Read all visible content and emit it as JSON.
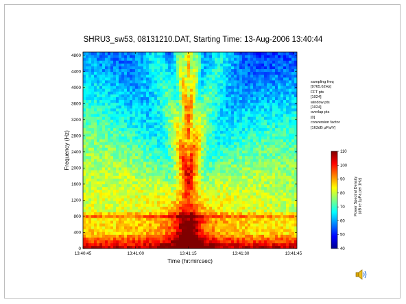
{
  "chart_data": {
    "type": "heatmap",
    "title": "SHRU3_sw53, 08131210.DAT, Starting Time: 13-Aug-2006 13:40:44",
    "xlabel": "Time (hr:min:sec)",
    "ylabel": "Frequency (Hz)",
    "x_ticks": [
      "13:40:45",
      "13:41:00",
      "13:41:15",
      "13:41:30",
      "13:41:45"
    ],
    "x_tick_seconds": [
      45,
      60,
      75,
      90,
      105
    ],
    "xlim_seconds": [
      45,
      106
    ],
    "y_ticks": [
      0,
      400,
      800,
      1200,
      1600,
      2000,
      2400,
      2800,
      3200,
      3600,
      4000,
      4400,
      4800
    ],
    "ylim": [
      0,
      4880
    ],
    "colorbar": {
      "label": "Power Spectral Density (dB re 1μPa per 1Hz)",
      "range": [
        40,
        110
      ],
      "ticks": [
        40,
        50,
        60,
        70,
        80,
        90,
        100,
        110
      ]
    },
    "features": {
      "broadband_peak_time_seconds": 75,
      "horizontal_line_hz": 800,
      "strong_low_band_hz": [
        0,
        400
      ]
    }
  },
  "annotation": [
    "sampling freq",
    "[9765.62Hz]",
    "FFT pts",
    "[1024]",
    "window pts",
    "[1024]",
    "overlap pts",
    "[0]",
    "conversion factor",
    "[163dB μPa/V]"
  ],
  "colors": {
    "jet": [
      "#00008f",
      "#0000ff",
      "#0080ff",
      "#00ffff",
      "#80ff80",
      "#ffff00",
      "#ff8000",
      "#ff0000",
      "#800000"
    ]
  },
  "icons": {
    "speaker": "speaker-icon"
  }
}
